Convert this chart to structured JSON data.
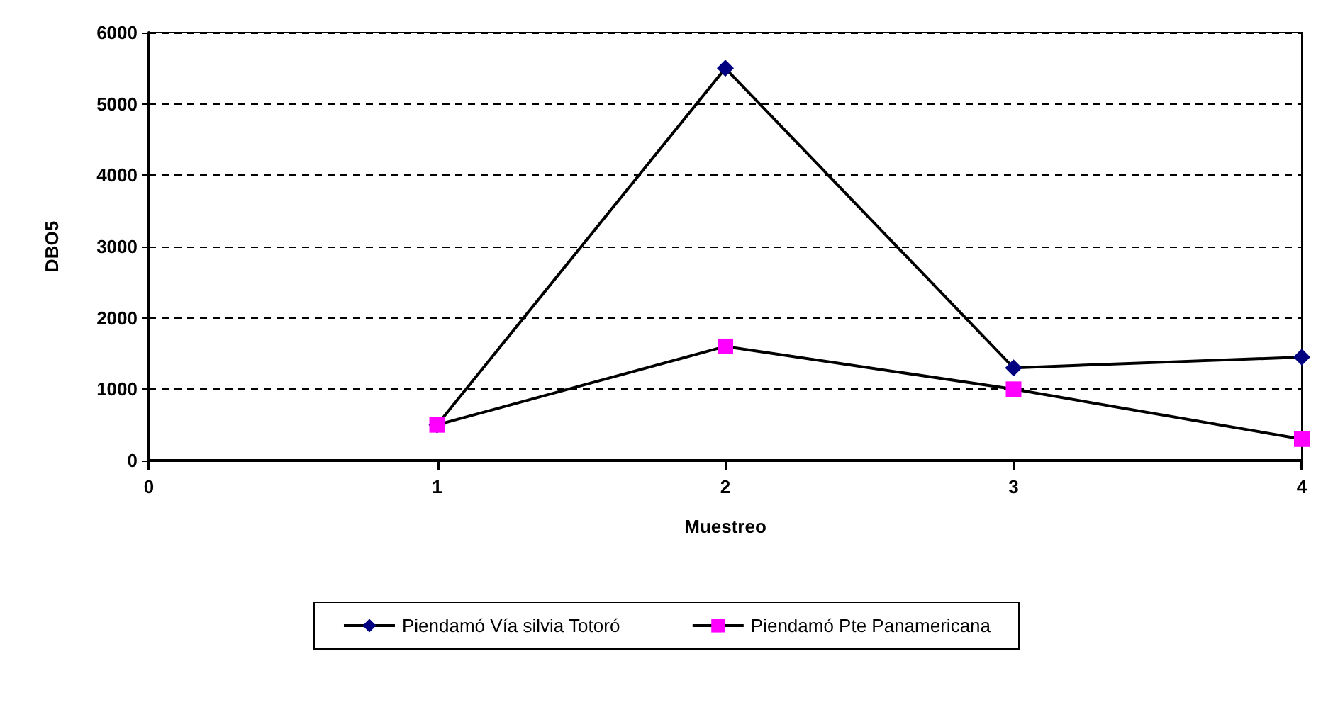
{
  "chart_data": {
    "type": "line",
    "xlabel": "Muestreo",
    "ylabel": "DBO5",
    "x": [
      1,
      2,
      3,
      4
    ],
    "series": [
      {
        "name": "Piendamó Vía silvia Totoró",
        "color": "#000080",
        "marker": "diamond",
        "values": [
          500,
          5500,
          1300,
          1450
        ]
      },
      {
        "name": "Piendamó Pte Panamericana",
        "color": "#ff00ff",
        "marker": "square",
        "values": [
          500,
          1600,
          1000,
          300
        ]
      }
    ],
    "xlim": [
      0,
      4
    ],
    "xticks": [
      0,
      1,
      2,
      3,
      4
    ],
    "ylim": [
      0,
      6000
    ],
    "yticks": [
      0,
      1000,
      2000,
      3000,
      4000,
      5000,
      6000
    ],
    "grid": "y",
    "legend": "bottom",
    "line_style": "solid"
  }
}
